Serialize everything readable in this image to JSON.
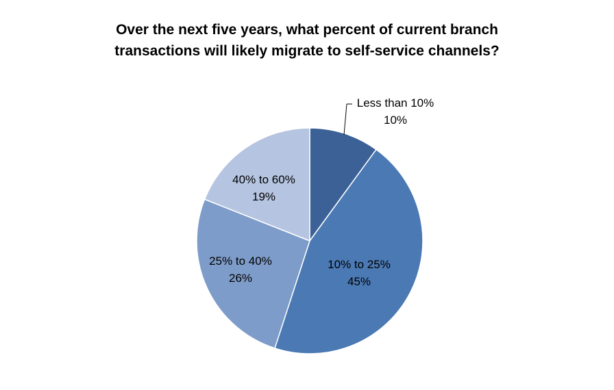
{
  "chart_data": {
    "type": "pie",
    "title": {
      "line1": "Over the next five years, what percent of current branch",
      "line2": "transactions  will likely migrate to self-service channels?"
    },
    "slices": [
      {
        "label": "Less than 10%",
        "value": 10,
        "value_label": "10%",
        "color": "#3B6196"
      },
      {
        "label": "10% to 25%",
        "value": 45,
        "value_label": "45%",
        "color": "#4A79B3"
      },
      {
        "label": "25% to 40%",
        "value": 26,
        "value_label": "26%",
        "color": "#7E9CC9"
      },
      {
        "label": "40% to 60%",
        "value": 19,
        "value_label": "19%",
        "color": "#B5C4E0"
      }
    ],
    "legend": "none",
    "label_style": "category name and value on slices"
  }
}
